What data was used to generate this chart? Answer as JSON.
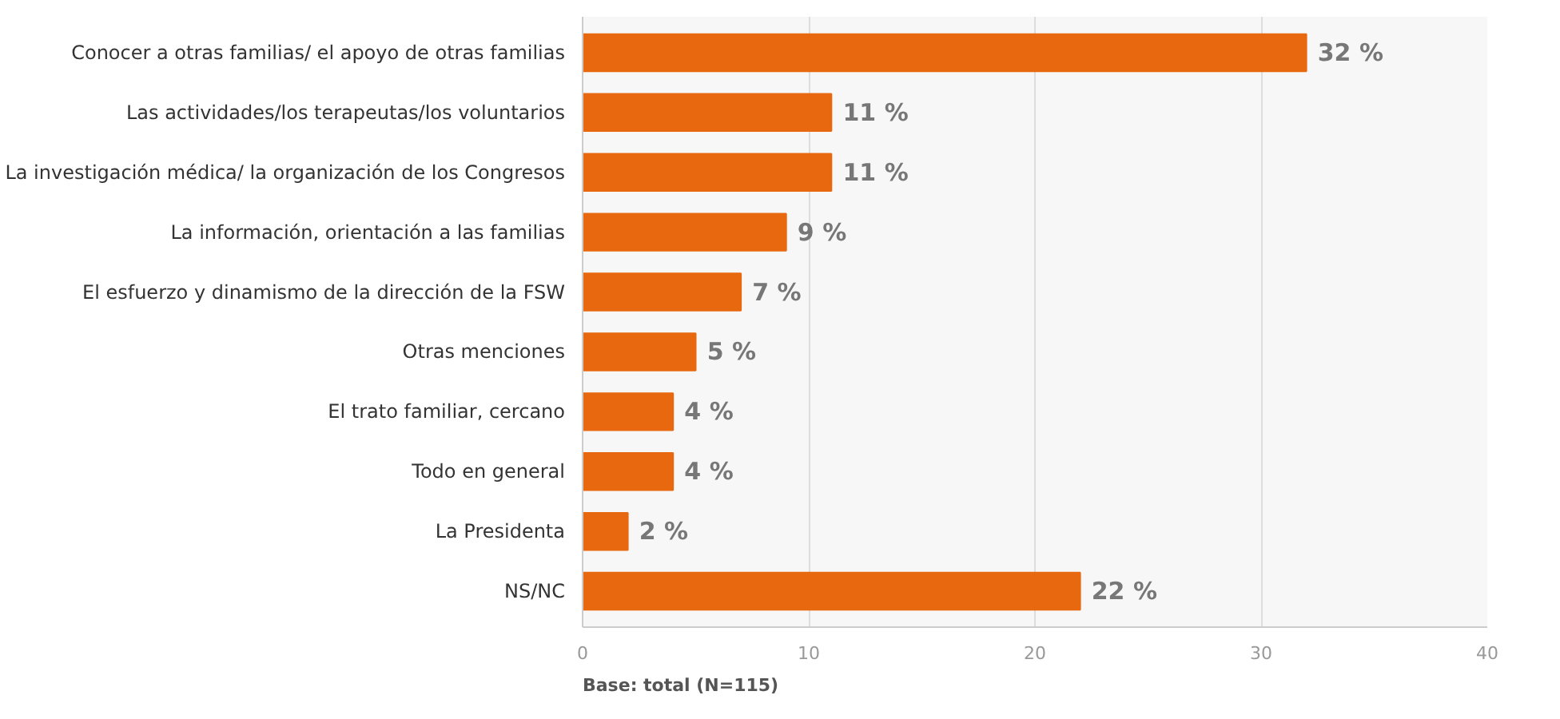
{
  "chart_data": {
    "type": "bar",
    "orientation": "horizontal",
    "categories": [
      "Conocer a otras familias/ el apoyo de otras familias",
      "Las actividades/los terapeutas/los voluntarios",
      "La investigación médica/ la organización de los Congresos",
      "La información, orientación a las familias",
      "El esfuerzo y dinamismo de la dirección de la FSW",
      "Otras menciones",
      "El trato familiar, cercano",
      "Todo en general",
      "La Presidenta",
      "NS/NC"
    ],
    "values": [
      32,
      11,
      11,
      9,
      7,
      5,
      4,
      4,
      2,
      22
    ],
    "value_labels": [
      "32 %",
      "11 %",
      "11 %",
      "9 %",
      "7 %",
      "5 %",
      "4 %",
      "4 %",
      "2 %",
      "22 %"
    ],
    "color": "#e8680f",
    "xlim": [
      0,
      40
    ],
    "xticks": [
      0,
      10,
      20,
      30,
      40
    ],
    "grid": "x",
    "annotations": [
      "Base: total (N=115)"
    ]
  }
}
